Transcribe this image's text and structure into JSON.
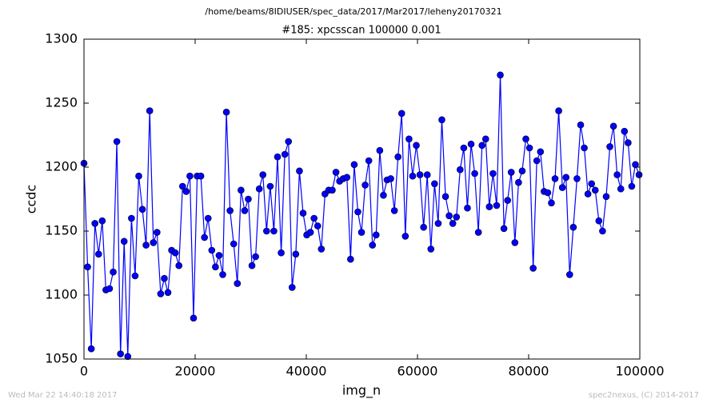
{
  "header": "/home/beams/8IDIUSER/spec_data/2017/Mar2017/leheny20170321",
  "footer": {
    "left": "Wed Mar 22 14:40:18 2017",
    "right": "spec2nexus, (C) 2014-2017"
  },
  "chart_data": {
    "type": "line",
    "title": "#185: xpcsscan 100000 0.001",
    "x_label": "img_n",
    "y_label": "ccdc",
    "color": "#0000ff",
    "grid": false,
    "xlim": [
      0,
      100000
    ],
    "ylim": [
      1050,
      1300
    ],
    "xticks": [
      0,
      20000,
      40000,
      60000,
      80000,
      100000
    ],
    "yticks": [
      1050,
      1100,
      1150,
      1200,
      1250,
      1300
    ],
    "x": [
      0,
      657,
      1314,
      1971,
      2628,
      3285,
      3942,
      4599,
      5256,
      5913,
      6570,
      7227,
      7884,
      8541,
      9198,
      9855,
      10512,
      11169,
      11826,
      12483,
      13140,
      13797,
      14454,
      15111,
      15768,
      16425,
      17082,
      17739,
      18396,
      19053,
      19710,
      20367,
      21024,
      21681,
      22338,
      22995,
      23652,
      24309,
      24966,
      25623,
      26280,
      26937,
      27594,
      28251,
      28908,
      29565,
      30222,
      30879,
      31536,
      32193,
      32850,
      33507,
      34164,
      34821,
      35478,
      36135,
      36792,
      37449,
      38106,
      38763,
      39420,
      40077,
      40734,
      41391,
      42048,
      42705,
      43362,
      44019,
      44676,
      45333,
      45990,
      46647,
      47304,
      47961,
      48618,
      49275,
      49932,
      50589,
      51246,
      51903,
      52560,
      53217,
      53874,
      54531,
      55188,
      55845,
      56502,
      57159,
      57816,
      58473,
      59130,
      59787,
      60444,
      61101,
      61758,
      62415,
      63072,
      63729,
      64386,
      65043,
      65700,
      66357,
      67014,
      67671,
      68328,
      68985,
      69642,
      70299,
      70956,
      71613,
      72270,
      72927,
      73584,
      74241,
      74898,
      75555,
      76212,
      76869,
      77526,
      78183,
      78840,
      79497,
      80154,
      80811,
      81468,
      82125,
      82782,
      83439,
      84096,
      84753,
      85410,
      86067,
      86724,
      87381,
      88038,
      88695,
      89352,
      90009,
      90666,
      91323,
      91980,
      92637,
      93294,
      93951,
      94608,
      95265,
      95922,
      96579,
      97236,
      97893,
      98550,
      99207,
      99864
    ],
    "values": [
      1203,
      1122,
      1058,
      1156,
      1132,
      1158,
      1104,
      1105,
      1118,
      1220,
      1054,
      1142,
      1052,
      1160,
      1115,
      1193,
      1167,
      1139,
      1244,
      1141,
      1149,
      1101,
      1113,
      1102,
      1135,
      1133,
      1123,
      1185,
      1181,
      1193,
      1082,
      1193,
      1193,
      1145,
      1160,
      1135,
      1122,
      1131,
      1116,
      1243,
      1166,
      1140,
      1109,
      1182,
      1166,
      1175,
      1123,
      1130,
      1183,
      1194,
      1150,
      1185,
      1150,
      1208,
      1133,
      1210,
      1220,
      1106,
      1132,
      1197,
      1164,
      1147,
      1149,
      1160,
      1154,
      1136,
      1179,
      1182,
      1182,
      1196,
      1189,
      1191,
      1192,
      1128,
      1202,
      1165,
      1149,
      1186,
      1205,
      1139,
      1147,
      1213,
      1178,
      1190,
      1191,
      1166,
      1208,
      1242,
      1146,
      1222,
      1193,
      1217,
      1194,
      1153,
      1194,
      1136,
      1187,
      1156,
      1237,
      1177,
      1162,
      1156,
      1161,
      1198,
      1215,
      1168,
      1218,
      1195,
      1149,
      1217,
      1222,
      1169,
      1195,
      1170,
      1272,
      1152,
      1174,
      1196,
      1141,
      1188,
      1197,
      1222,
      1215,
      1121,
      1205,
      1212,
      1181,
      1180,
      1172,
      1191,
      1244,
      1184,
      1192,
      1116,
      1153,
      1191,
      1233,
      1215,
      1179,
      1187,
      1182,
      1158,
      1150,
      1177,
      1216,
      1232,
      1194,
      1183,
      1228,
      1219,
      1185,
      1202,
      1194
    ]
  }
}
